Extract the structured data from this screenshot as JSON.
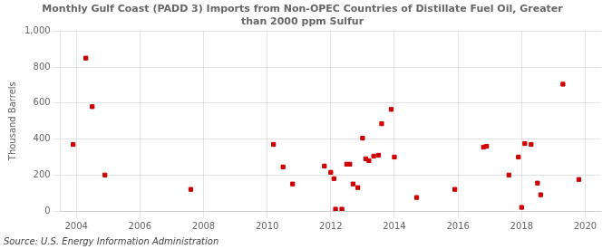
{
  "chart_data": {
    "type": "scatter",
    "title": "Monthly Gulf Coast (PADD 3) Imports from Non-OPEC Countries of Distillate Fuel Oil, Greater\nthan 2000 ppm Sulfur",
    "ylabel": "Thousand Barrels",
    "source": "Source: U.S. Energy Information Administration",
    "color": "#cc0000",
    "marker": "square",
    "grid": true,
    "xlim": [
      2003.5,
      2020.5
    ],
    "xticks": [
      2004,
      2006,
      2008,
      2010,
      2012,
      2014,
      2016,
      2018,
      2020
    ],
    "ylim": [
      0,
      1000
    ],
    "yticks": [
      0,
      200,
      400,
      600,
      800,
      {
        "value": 1000,
        "label": "1,000"
      }
    ],
    "x": [
      2003.9,
      2004.3,
      2004.5,
      2004.9,
      2007.6,
      2010.2,
      2010.5,
      2010.8,
      2011.8,
      2012.0,
      2012.1,
      2012.15,
      2012.35,
      2012.5,
      2012.6,
      2012.7,
      2012.85,
      2013.0,
      2013.1,
      2013.2,
      2013.35,
      2013.5,
      2013.6,
      2013.9,
      2014.0,
      2014.7,
      2015.9,
      2016.8,
      2016.9,
      2017.6,
      2017.9,
      2018.0,
      2018.1,
      2018.3,
      2018.5,
      2018.6,
      2019.3,
      2019.8
    ],
    "values": [
      370,
      850,
      580,
      200,
      120,
      370,
      245,
      150,
      250,
      215,
      180,
      10,
      10,
      260,
      260,
      150,
      130,
      405,
      290,
      280,
      305,
      310,
      485,
      565,
      300,
      75,
      120,
      355,
      360,
      200,
      300,
      20,
      375,
      370,
      155,
      90,
      705,
      175
    ]
  }
}
